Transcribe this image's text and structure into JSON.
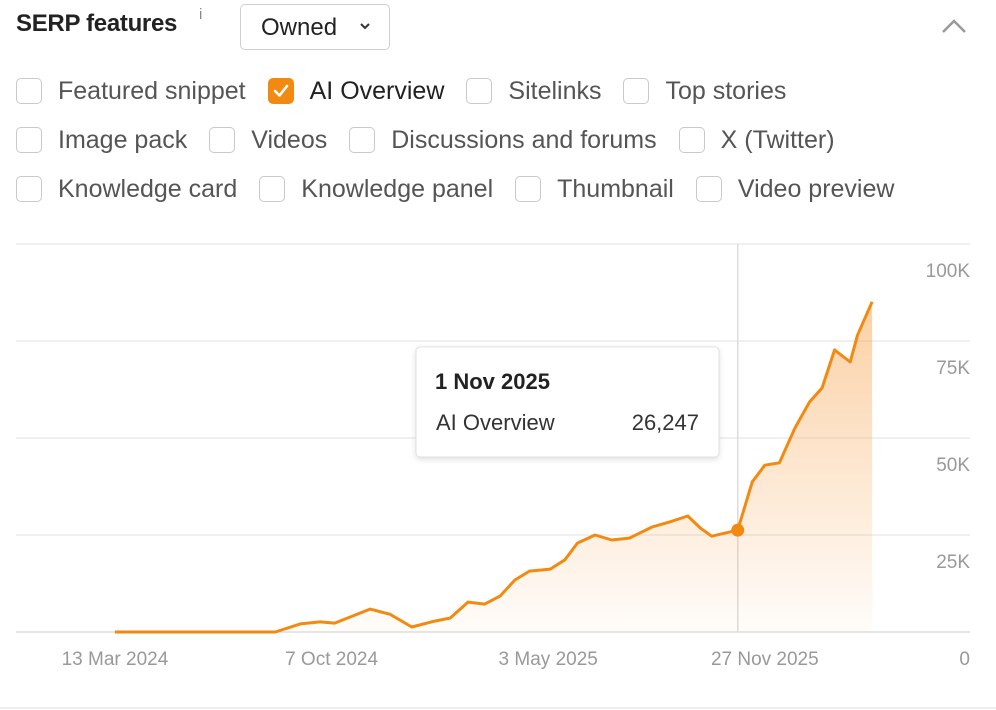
{
  "header": {
    "title": "SERP features",
    "info": "i",
    "dropdown": "Owned"
  },
  "filters": {
    "rows": [
      [
        {
          "label": "Featured snippet",
          "checked": false
        },
        {
          "label": "AI Overview",
          "checked": true
        },
        {
          "label": "Sitelinks",
          "checked": false
        },
        {
          "label": "Top stories",
          "checked": false
        }
      ],
      [
        {
          "label": "Image pack",
          "checked": false
        },
        {
          "label": "Videos",
          "checked": false
        },
        {
          "label": "Discussions and forums",
          "checked": false
        },
        {
          "label": "X (Twitter)",
          "checked": false
        }
      ],
      [
        {
          "label": "Knowledge card",
          "checked": false
        },
        {
          "label": "Knowledge panel",
          "checked": false
        },
        {
          "label": "Thumbnail",
          "checked": false
        },
        {
          "label": "Video preview",
          "checked": false
        }
      ]
    ]
  },
  "chart_data": {
    "type": "area",
    "x": [
      "2024-03-13",
      "2024-08-14",
      "2024-09-07",
      "2024-09-26",
      "2024-10-10",
      "2024-11-13",
      "2024-12-02",
      "2024-12-23",
      "2025-01-14",
      "2025-01-29",
      "2025-02-15",
      "2025-03-03",
      "2025-03-18",
      "2025-04-01",
      "2025-04-15",
      "2025-05-05",
      "2025-05-19",
      "2025-05-31",
      "2025-06-17",
      "2025-07-03",
      "2025-07-20",
      "2025-08-11",
      "2025-08-28",
      "2025-09-14",
      "2025-09-26",
      "2025-10-07",
      "2025-10-20",
      "2025-11-01",
      "2025-11-15",
      "2025-11-27",
      "2025-12-11",
      "2025-12-26",
      "2026-01-09",
      "2026-01-21",
      "2026-02-02",
      "2026-02-17",
      "2026-02-24",
      "2026-03-10"
    ],
    "series": [
      {
        "name": "AI Overview",
        "color": "#f28a12",
        "values": [
          0,
          0,
          2100,
          2600,
          2300,
          5900,
          4600,
          1300,
          2800,
          3600,
          7700,
          7200,
          9300,
          13400,
          15700,
          16200,
          18600,
          22900,
          25000,
          23700,
          24200,
          27100,
          28400,
          29900,
          26800,
          24700,
          25500,
          26247,
          38700,
          43000,
          43600,
          52600,
          59300,
          62900,
          72700,
          69600,
          76500,
          85100
        ],
        "value_labels": [
          null,
          null,
          null,
          null,
          null,
          null,
          null,
          null,
          null,
          null,
          null,
          null,
          null,
          null,
          null,
          null,
          null,
          null,
          null,
          null,
          null,
          null,
          null,
          null,
          null,
          null,
          null,
          "26,247",
          null,
          null,
          null,
          null,
          null,
          null,
          null,
          null,
          null,
          null
        ]
      }
    ],
    "hover": {
      "label": "1 Nov 2025"
    },
    "xlim": [
      "2023-12-09",
      "2026-06-12"
    ],
    "xticks": [
      {
        "value": "2024-03-13",
        "label": "13 Mar 2024"
      },
      {
        "value": "2024-10-07",
        "label": "7 Oct 2024"
      },
      {
        "value": "2025-05-03",
        "label": "3 May 2025"
      },
      {
        "value": "2025-11-27",
        "label": "27 Nov 2025"
      }
    ],
    "ylim": [
      0,
      100000
    ],
    "yticks": [
      0,
      {
        "value": 25000,
        "label": "25K"
      },
      {
        "value": 50000,
        "label": "50K"
      },
      {
        "value": 75000,
        "label": "75K"
      },
      {
        "value": 100000,
        "label": "100K"
      }
    ],
    "grid": true
  }
}
